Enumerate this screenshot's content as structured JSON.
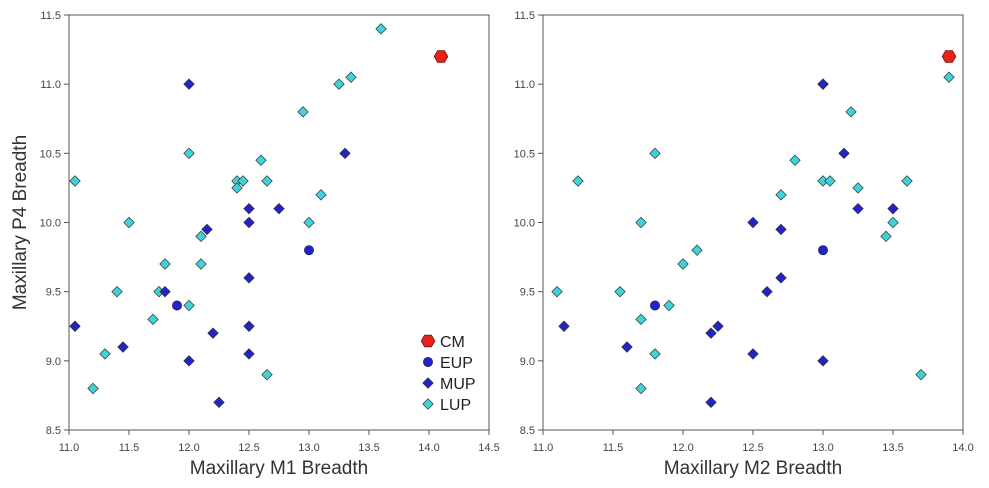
{
  "colors": {
    "CM": "#e8211b",
    "EUP": "#2323c8",
    "MUP": "#2323c8",
    "LUP": "#3ed3d8",
    "edge": "#333333",
    "axis": "#555555"
  },
  "chart_data": [
    {
      "type": "scatter",
      "xlabel": "Maxillary M1 Breadth",
      "ylabel": "Maxillary P4 Breadth",
      "xlim": [
        11.0,
        14.5
      ],
      "ylim": [
        8.5,
        11.5
      ],
      "xticks": [
        "11.0",
        "11.5",
        "12.0",
        "12.5",
        "13.0",
        "13.5",
        "14.0",
        "14.5"
      ],
      "yticks": [
        "8.5",
        "9.0",
        "9.5",
        "10.0",
        "10.5",
        "11.0",
        "11.5"
      ],
      "legend_position": "bottom-right",
      "legend": [
        "CM",
        "EUP",
        "MUP",
        "LUP"
      ],
      "series": [
        {
          "name": "CM",
          "marker": "hexagon",
          "points": [
            [
              14.1,
              11.2
            ]
          ]
        },
        {
          "name": "EUP",
          "marker": "circle",
          "points": [
            [
              11.9,
              9.4
            ],
            [
              13.0,
              9.8
            ]
          ]
        },
        {
          "name": "MUP",
          "marker": "diamond",
          "points": [
            [
              11.05,
              9.25
            ],
            [
              11.45,
              9.1
            ],
            [
              11.8,
              9.5
            ],
            [
              12.0,
              11.0
            ],
            [
              12.0,
              9.0
            ],
            [
              12.15,
              9.95
            ],
            [
              12.2,
              9.2
            ],
            [
              12.25,
              8.7
            ],
            [
              12.5,
              10.1
            ],
            [
              12.5,
              10.0
            ],
            [
              12.5,
              9.6
            ],
            [
              12.5,
              9.25
            ],
            [
              12.5,
              9.05
            ],
            [
              12.75,
              10.1
            ],
            [
              13.3,
              10.5
            ]
          ]
        },
        {
          "name": "LUP",
          "marker": "diamond",
          "points": [
            [
              11.05,
              10.3
            ],
            [
              11.2,
              8.8
            ],
            [
              11.3,
              9.05
            ],
            [
              11.4,
              9.5
            ],
            [
              11.5,
              10.0
            ],
            [
              11.7,
              9.3
            ],
            [
              11.75,
              9.5
            ],
            [
              11.8,
              9.7
            ],
            [
              12.0,
              10.5
            ],
            [
              12.0,
              9.4
            ],
            [
              12.1,
              9.9
            ],
            [
              12.1,
              9.7
            ],
            [
              12.4,
              10.3
            ],
            [
              12.45,
              10.3
            ],
            [
              12.4,
              10.25
            ],
            [
              12.6,
              10.45
            ],
            [
              12.65,
              10.3
            ],
            [
              12.65,
              8.9
            ],
            [
              12.95,
              10.8
            ],
            [
              13.0,
              10.0
            ],
            [
              13.1,
              10.2
            ],
            [
              13.25,
              11.0
            ],
            [
              13.35,
              11.05
            ],
            [
              13.6,
              11.4
            ]
          ]
        }
      ]
    },
    {
      "type": "scatter",
      "xlabel": "Maxillary M2 Breadth",
      "ylabel": "",
      "xlim": [
        11.0,
        14.0
      ],
      "ylim": [
        8.5,
        11.5
      ],
      "xticks": [
        "11.0",
        "11.5",
        "12.0",
        "12.5",
        "13.0",
        "13.5",
        "14.0"
      ],
      "yticks": [
        "8.5",
        "9.0",
        "9.5",
        "10.0",
        "10.5",
        "11.0",
        "11.5"
      ],
      "series": [
        {
          "name": "CM",
          "marker": "hexagon",
          "points": [
            [
              13.9,
              11.2
            ]
          ]
        },
        {
          "name": "EUP",
          "marker": "circle",
          "points": [
            [
              11.8,
              9.4
            ],
            [
              13.0,
              9.8
            ]
          ]
        },
        {
          "name": "MUP",
          "marker": "diamond",
          "points": [
            [
              11.15,
              9.25
            ],
            [
              11.6,
              9.1
            ],
            [
              12.2,
              8.7
            ],
            [
              12.2,
              9.2
            ],
            [
              12.25,
              9.25
            ],
            [
              12.5,
              10.0
            ],
            [
              12.5,
              9.05
            ],
            [
              12.6,
              9.5
            ],
            [
              12.7,
              9.95
            ],
            [
              12.7,
              9.6
            ],
            [
              13.0,
              11.0
            ],
            [
              13.0,
              9.0
            ],
            [
              13.15,
              10.5
            ],
            [
              13.25,
              10.1
            ],
            [
              13.5,
              10.1
            ]
          ]
        },
        {
          "name": "LUP",
          "marker": "diamond",
          "points": [
            [
              11.1,
              9.5
            ],
            [
              11.25,
              10.3
            ],
            [
              11.55,
              9.5
            ],
            [
              11.7,
              10.0
            ],
            [
              11.7,
              9.3
            ],
            [
              11.7,
              8.8
            ],
            [
              11.8,
              10.5
            ],
            [
              11.8,
              9.05
            ],
            [
              11.9,
              9.4
            ],
            [
              12.0,
              9.7
            ],
            [
              12.1,
              9.8
            ],
            [
              12.7,
              10.2
            ],
            [
              12.8,
              10.45
            ],
            [
              13.0,
              11.0
            ],
            [
              13.0,
              10.3
            ],
            [
              13.05,
              10.3
            ],
            [
              13.2,
              10.8
            ],
            [
              13.25,
              10.25
            ],
            [
              13.45,
              9.9
            ],
            [
              13.5,
              10.0
            ],
            [
              13.6,
              10.3
            ],
            [
              13.7,
              8.9
            ],
            [
              13.9,
              11.05
            ]
          ]
        }
      ]
    }
  ]
}
